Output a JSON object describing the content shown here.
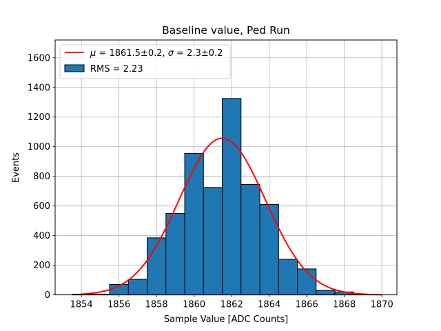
{
  "chart_data": {
    "type": "bar",
    "title": "Baseline value, Ped Run",
    "xlabel": "Sample Value [ADC Counts]",
    "ylabel": "Events",
    "xlim": [
      1852.6,
      1870.8
    ],
    "ylim": [
      0,
      1720
    ],
    "x_ticks": [
      1854,
      1856,
      1858,
      1860,
      1862,
      1864,
      1866,
      1868,
      1870
    ],
    "y_ticks": [
      0,
      200,
      400,
      600,
      800,
      1000,
      1200,
      1400,
      1600
    ],
    "grid": true,
    "legend_position": "top-left",
    "bin_width": 1,
    "bins": [
      {
        "x": 1854.0,
        "value": 5
      },
      {
        "x": 1855.0,
        "value": 5
      },
      {
        "x": 1856.0,
        "value": 70
      },
      {
        "x": 1857.0,
        "value": 105
      },
      {
        "x": 1858.0,
        "value": 385
      },
      {
        "x": 1859.0,
        "value": 550
      },
      {
        "x": 1860.0,
        "value": 955
      },
      {
        "x": 1861.0,
        "value": 725
      },
      {
        "x": 1862.0,
        "value": 1325
      },
      {
        "x": 1863.0,
        "value": 745
      },
      {
        "x": 1864.0,
        "value": 610
      },
      {
        "x": 1865.0,
        "value": 240
      },
      {
        "x": 1866.0,
        "value": 175
      },
      {
        "x": 1867.0,
        "value": 30
      },
      {
        "x": 1868.0,
        "value": 20
      },
      {
        "x": 1869.0,
        "value": 2
      }
    ],
    "fit": {
      "mu": 1861.5,
      "sigma": 2.3,
      "amplitude": 1057,
      "x_range": [
        1854,
        1870
      ],
      "color": "#ff0000"
    },
    "bar_color": "#1f77b4",
    "legend": [
      {
        "type": "line",
        "mu_label": "μ",
        "mu_text": " = 1861.5±0.2, ",
        "sigma_label": "σ",
        "sigma_text": " = 2.3±0.2",
        "color": "#ff0000"
      },
      {
        "type": "patch",
        "label": "RMS = 2.23",
        "color": "#1f77b4"
      }
    ]
  }
}
